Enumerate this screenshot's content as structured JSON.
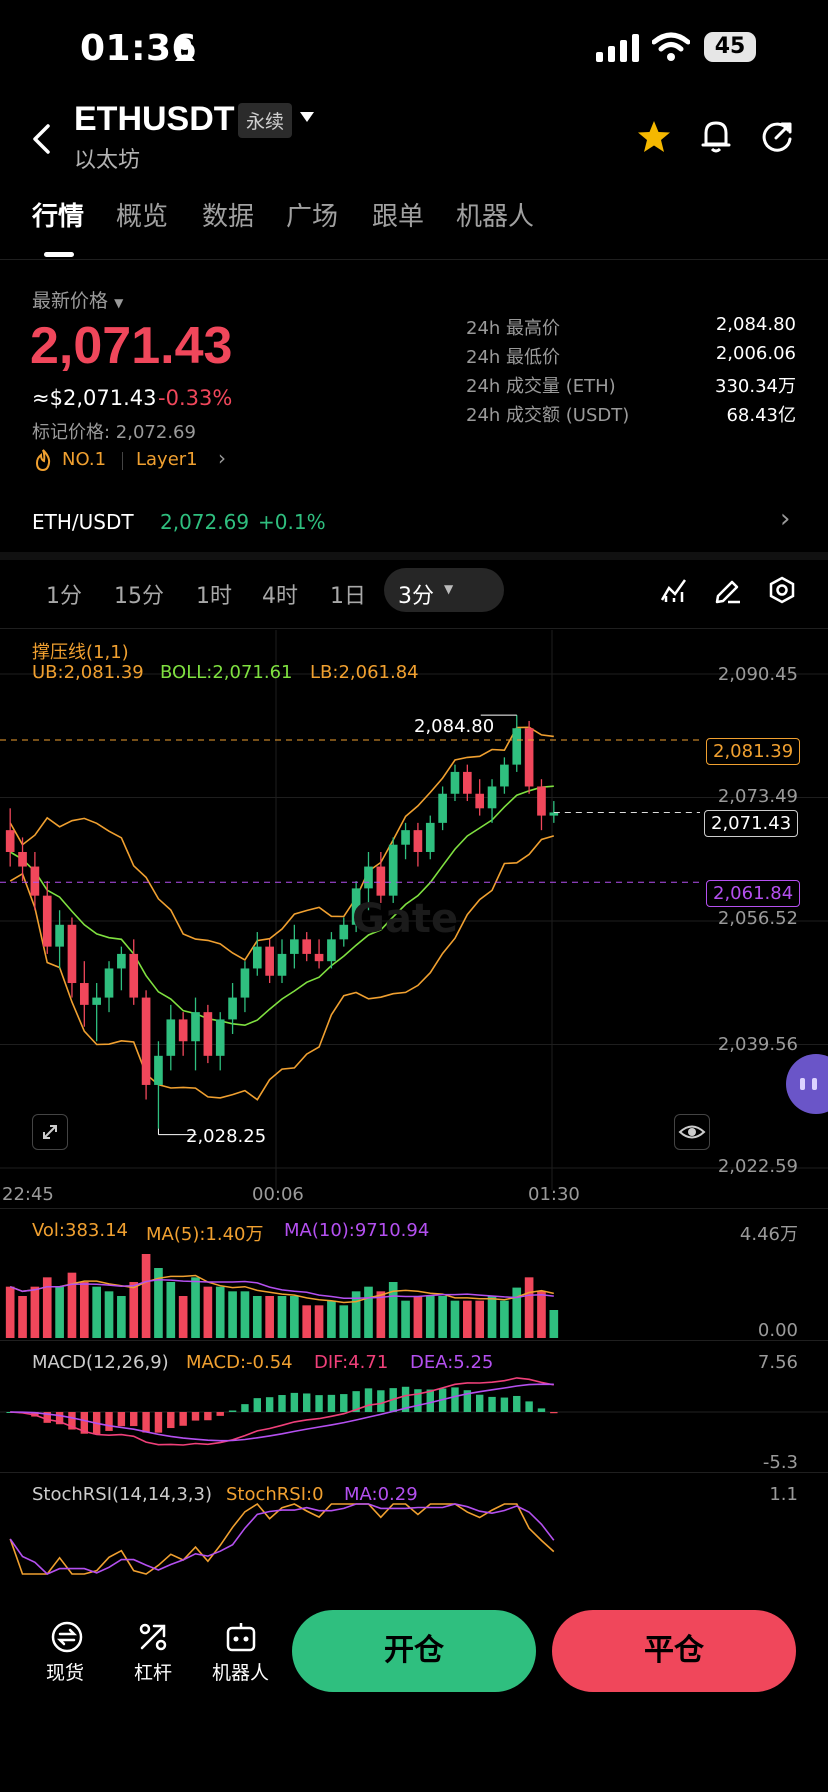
{
  "status": {
    "time": "01:36",
    "battery": "45"
  },
  "header": {
    "symbol": "ETHUSDT",
    "badge": "永续",
    "subtitle": "以太坊"
  },
  "tabs": [
    "行情",
    "概览",
    "数据",
    "广场",
    "跟单",
    "机器人"
  ],
  "price": {
    "label": "最新价格",
    "last": "2,071.43",
    "usd": "≈$2,071.43",
    "change": "-0.33%",
    "mark": "标记价格: 2,072.69",
    "rank": "NO.1",
    "sector": "Layer1"
  },
  "stats": [
    {
      "k": "24h 最高价",
      "v": "2,084.80"
    },
    {
      "k": "24h 最低价",
      "v": "2,006.06"
    },
    {
      "k": "24h 成交量 (ETH)",
      "v": "330.34万"
    },
    {
      "k": "24h 成交额 (USDT)",
      "v": "68.43亿"
    }
  ],
  "spot": {
    "pair": "ETH/USDT",
    "price": "2,072.69",
    "change": "+0.1%"
  },
  "intervals": [
    "1分",
    "15分",
    "1时",
    "4时",
    "1日"
  ],
  "active_interval": "3分",
  "indicators": {
    "boll_title": "撑压线(1,1)",
    "ub": "UB:2,081.39",
    "boll": "BOLL:2,071.61",
    "lb": "LB:2,061.84",
    "vol": "Vol:383.14",
    "ma5": "MA(5):1.40万",
    "ma10": "MA(10):9710.94",
    "macd_title": "MACD(12,26,9)",
    "macd": "MACD:-0.54",
    "dif": "DIF:4.71",
    "dea": "DEA:5.25",
    "stoch_title": "StochRSI(14,14,3,3)",
    "stoch": "StochRSI:0",
    "stoch_ma": "MA:0.29"
  },
  "axis": {
    "prices": [
      "2,090.45",
      "2,073.49",
      "2,056.52",
      "2,039.56",
      "2,022.59"
    ],
    "times": [
      "22:45",
      "00:06",
      "01:30"
    ],
    "vol_max": "4.46万",
    "vol_min": "0.00",
    "macd_max": "7.56",
    "macd_min": "-5.3",
    "stoch_max": "1.1"
  },
  "tags": {
    "high": "2,084.80",
    "low": "2,028.25",
    "ub": "2,081.39",
    "last": "2,071.43",
    "lb": "2,061.84"
  },
  "watermark": "Gate",
  "bottom": {
    "spot": "现货",
    "leverage": "杠杆",
    "bot": "机器人",
    "open": "开仓",
    "close": "平仓"
  },
  "colors": {
    "up": "#2fbf7f",
    "down": "#f0475b",
    "ub": "#f0a030",
    "mid": "#7fe040",
    "lb": "#f0a030"
  },
  "chart_data": {
    "type": "candlestick",
    "ohlc": [
      [
        2069,
        2072,
        2064,
        2066
      ],
      [
        2066,
        2068,
        2062,
        2064
      ],
      [
        2064,
        2066,
        2058,
        2060
      ],
      [
        2060,
        2062,
        2052,
        2053
      ],
      [
        2053,
        2058,
        2050,
        2056
      ],
      [
        2056,
        2057,
        2046,
        2048
      ],
      [
        2048,
        2051,
        2042,
        2045
      ],
      [
        2045,
        2048,
        2040,
        2046
      ],
      [
        2046,
        2051,
        2044,
        2050
      ],
      [
        2050,
        2053,
        2047,
        2052
      ],
      [
        2052,
        2054,
        2045,
        2046
      ],
      [
        2046,
        2047,
        2032,
        2034
      ],
      [
        2034,
        2040,
        2028,
        2038
      ],
      [
        2038,
        2045,
        2036,
        2043
      ],
      [
        2043,
        2044,
        2038,
        2040
      ],
      [
        2040,
        2046,
        2036,
        2044
      ],
      [
        2044,
        2045,
        2037,
        2038
      ],
      [
        2038,
        2044,
        2036,
        2043
      ],
      [
        2043,
        2048,
        2041,
        2046
      ],
      [
        2046,
        2051,
        2044,
        2050
      ],
      [
        2050,
        2055,
        2049,
        2053
      ],
      [
        2053,
        2054,
        2048,
        2049
      ],
      [
        2049,
        2054,
        2048,
        2052
      ],
      [
        2052,
        2056,
        2050,
        2054
      ],
      [
        2054,
        2055,
        2051,
        2052
      ],
      [
        2052,
        2054,
        2050,
        2051
      ],
      [
        2051,
        2055,
        2050,
        2054
      ],
      [
        2054,
        2057,
        2053,
        2056
      ],
      [
        2056,
        2062,
        2055,
        2061
      ],
      [
        2061,
        2066,
        2058,
        2064
      ],
      [
        2064,
        2066,
        2059,
        2060
      ],
      [
        2060,
        2068,
        2059,
        2067
      ],
      [
        2067,
        2070,
        2065,
        2069
      ],
      [
        2069,
        2070,
        2064,
        2066
      ],
      [
        2066,
        2071,
        2065,
        2070
      ],
      [
        2070,
        2075,
        2069,
        2074
      ],
      [
        2074,
        2078,
        2073,
        2077
      ],
      [
        2077,
        2078,
        2073,
        2074
      ],
      [
        2074,
        2076,
        2071,
        2072
      ],
      [
        2072,
        2076,
        2070,
        2075
      ],
      [
        2075,
        2079,
        2074,
        2078
      ],
      [
        2078,
        2084.8,
        2077,
        2083
      ],
      [
        2083,
        2084,
        2074,
        2075
      ],
      [
        2075,
        2076,
        2069,
        2071
      ],
      [
        2071,
        2073,
        2070,
        2071.43
      ]
    ],
    "ylim": [
      2022.59,
      2090.45
    ]
  }
}
